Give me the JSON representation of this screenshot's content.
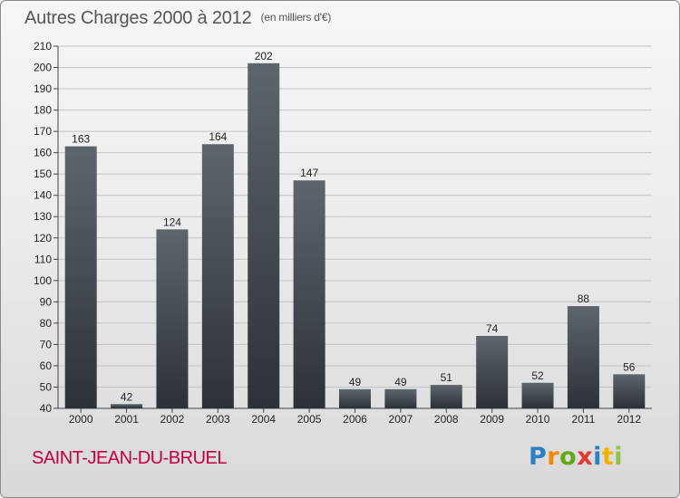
{
  "header": {
    "title": "Autres Charges 2000 à 2012",
    "unit": "(en milliers d'€)"
  },
  "footer": {
    "commune": "SAINT-JEAN-DU-BRUEL",
    "logo": "Proxiti"
  },
  "colors": {
    "bar_top": "#5f656d",
    "bar_bottom": "#2c3137",
    "gridline": "#c4c4c4",
    "commune_text": "#c6003b"
  },
  "chart_data": {
    "type": "bar",
    "categories": [
      "2000",
      "2001",
      "2002",
      "2003",
      "2004",
      "2005",
      "2006",
      "2007",
      "2008",
      "2009",
      "2010",
      "2011",
      "2012"
    ],
    "values": [
      163,
      42,
      124,
      164,
      202,
      147,
      49,
      49,
      51,
      74,
      52,
      88,
      56
    ],
    "title": "Autres Charges 2000 à 2012",
    "subtitle": "(en milliers d'€)",
    "xlabel": "",
    "ylabel": "",
    "ylim": [
      40,
      210
    ],
    "yticks": [
      40,
      50,
      60,
      70,
      80,
      90,
      100,
      110,
      120,
      130,
      140,
      150,
      160,
      170,
      180,
      190,
      200,
      210
    ],
    "grid": true,
    "data_labels": true
  }
}
